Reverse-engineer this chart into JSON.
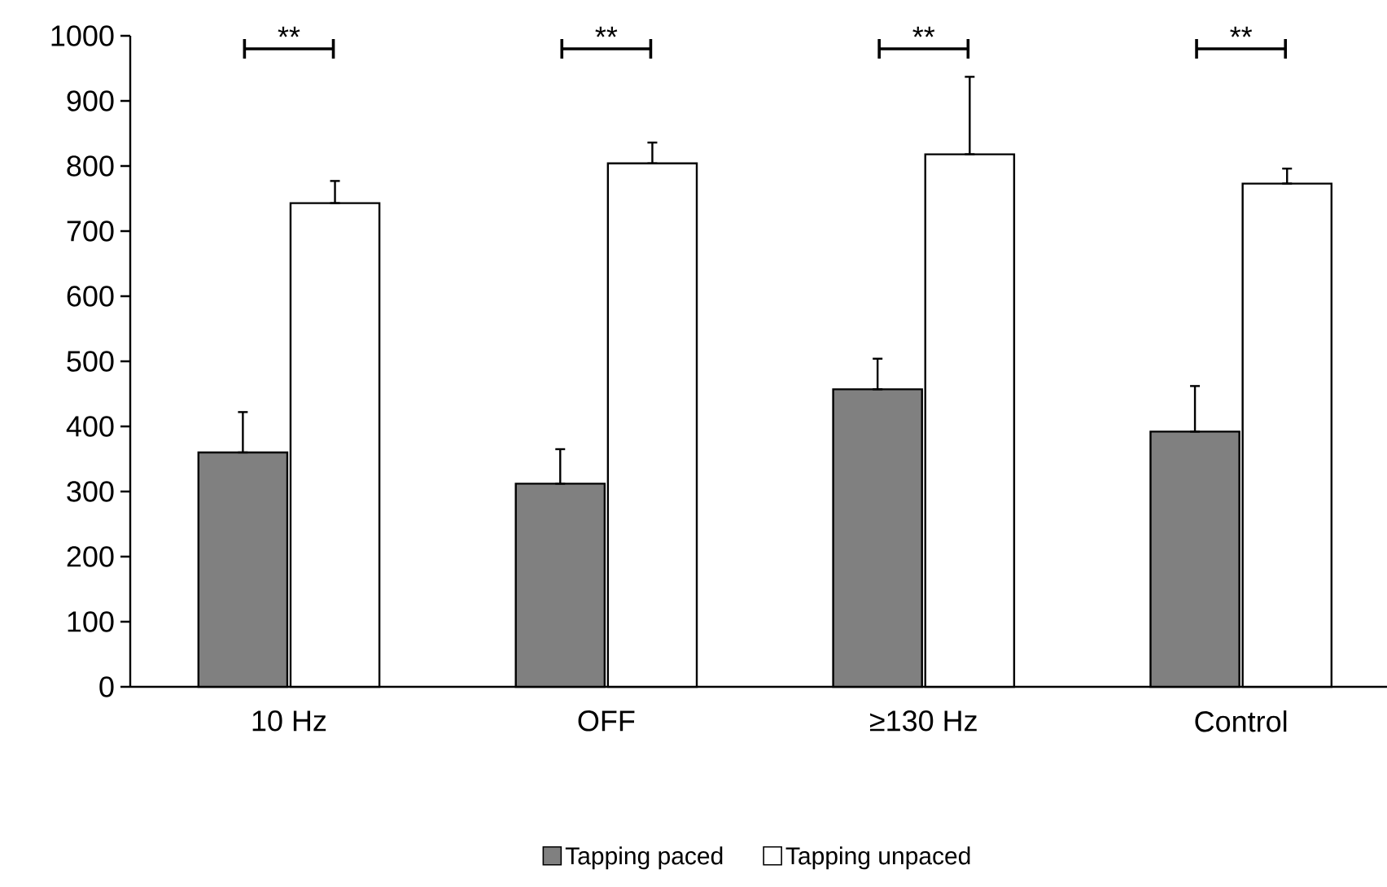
{
  "chart_data": {
    "type": "bar",
    "categories": [
      "10 Hz",
      "OFF",
      "≥130 Hz",
      "Control"
    ],
    "series": [
      {
        "name": "Tapping paced",
        "color": "#808080",
        "values": [
          360,
          312,
          457,
          392
        ],
        "errors": [
          [
            360,
            422
          ],
          [
            312,
            365
          ],
          [
            457,
            504
          ],
          [
            392,
            462
          ]
        ]
      },
      {
        "name": "Tapping unpaced",
        "color": "#ffffff",
        "values": [
          743,
          804,
          818,
          773
        ],
        "errors": [
          [
            743,
            777
          ],
          [
            804,
            836
          ],
          [
            818,
            937
          ],
          [
            773,
            796
          ]
        ]
      }
    ],
    "ylim": [
      0,
      1000
    ],
    "yticks": [
      0,
      100,
      200,
      300,
      400,
      500,
      600,
      700,
      800,
      900,
      1000
    ],
    "annotations": [
      "**",
      "**",
      "**",
      "**"
    ],
    "legend": "bottom",
    "grid": false
  }
}
